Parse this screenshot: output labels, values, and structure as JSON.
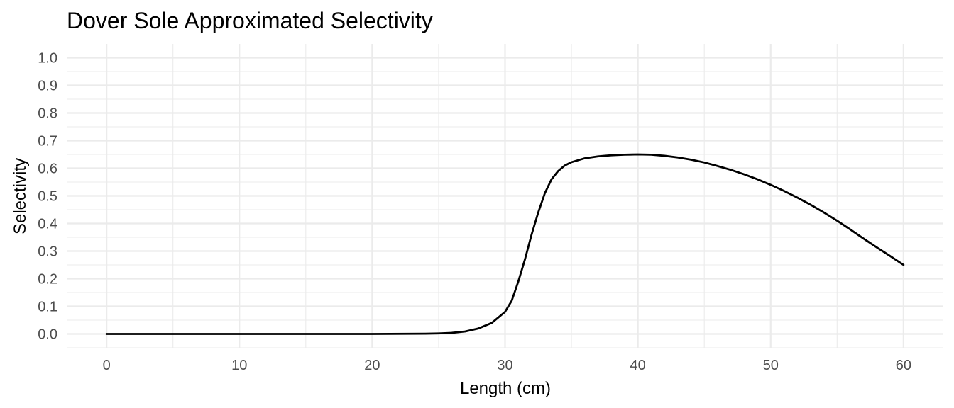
{
  "chart_data": {
    "type": "line",
    "title": "Dover Sole Approximated Selectivity",
    "xlabel": "Length (cm)",
    "ylabel": "Selectivity",
    "xlim": [
      -3,
      63
    ],
    "ylim": [
      -0.05,
      1.05
    ],
    "x_ticks": [
      0,
      10,
      20,
      30,
      40,
      50,
      60
    ],
    "x_tick_labels": [
      "0",
      "10",
      "20",
      "30",
      "40",
      "50",
      "60"
    ],
    "y_ticks": [
      0.0,
      0.1,
      0.2,
      0.3,
      0.4,
      0.5,
      0.6,
      0.7,
      0.8,
      0.9,
      1.0
    ],
    "y_tick_labels": [
      "0.0",
      "0.1",
      "0.2",
      "0.3",
      "0.4",
      "0.5",
      "0.6",
      "0.7",
      "0.8",
      "0.9",
      "1.0"
    ],
    "grid": true,
    "legend": "none",
    "series": [
      {
        "color": "#000000",
        "x": [
          0,
          5,
          10,
          15,
          20,
          24,
          25,
          26,
          27,
          28,
          29,
          30,
          30.5,
          31,
          31.5,
          32,
          32.5,
          33,
          33.5,
          34,
          34.5,
          35,
          36,
          37,
          38,
          39,
          40,
          41,
          42,
          43,
          44,
          45,
          46,
          47,
          48,
          49,
          50,
          51,
          52,
          53,
          54,
          55,
          56,
          57,
          58,
          59,
          60
        ],
        "y": [
          0.0,
          0.0,
          0.0,
          0.0,
          0.0,
          0.001,
          0.002,
          0.004,
          0.009,
          0.02,
          0.04,
          0.08,
          0.12,
          0.19,
          0.27,
          0.36,
          0.44,
          0.51,
          0.56,
          0.59,
          0.61,
          0.622,
          0.636,
          0.643,
          0.647,
          0.649,
          0.65,
          0.649,
          0.645,
          0.639,
          0.631,
          0.621,
          0.608,
          0.594,
          0.578,
          0.56,
          0.54,
          0.518,
          0.494,
          0.468,
          0.44,
          0.41,
          0.378,
          0.345,
          0.313,
          0.282,
          0.25
        ]
      }
    ]
  }
}
